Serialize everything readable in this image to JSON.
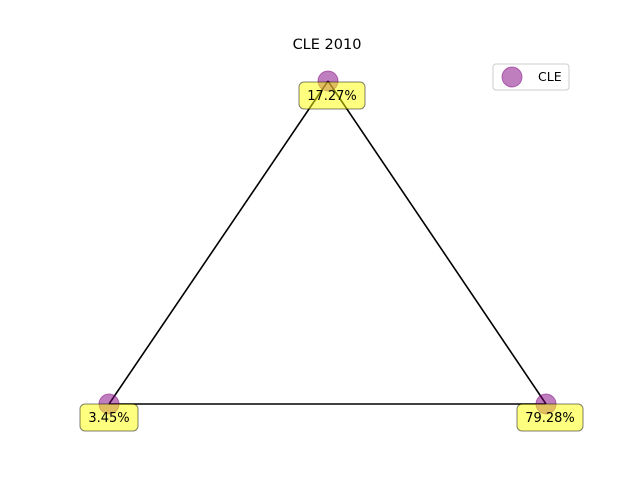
{
  "chart_data": {
    "type": "scatter",
    "title": "CLE 2010",
    "legend": {
      "placement": "top-right",
      "entries": [
        {
          "label": "CLE",
          "color": "#800080"
        }
      ]
    },
    "grid": false,
    "axes_visible": false,
    "triangle": {
      "edge_color": "#000000",
      "vertices": [
        {
          "id": "left",
          "label": "3.45%"
        },
        {
          "id": "top",
          "label": "17.27%"
        },
        {
          "id": "right",
          "label": "79.28%"
        }
      ]
    },
    "series": [
      {
        "name": "CLE",
        "color": "#800080",
        "alpha": 0.5,
        "points": [
          {
            "vertex": "left"
          },
          {
            "vertex": "top"
          },
          {
            "vertex": "right"
          }
        ]
      }
    ],
    "label_box": {
      "fill": "#ffff00",
      "alpha": 0.5,
      "edge": "#000000"
    }
  }
}
